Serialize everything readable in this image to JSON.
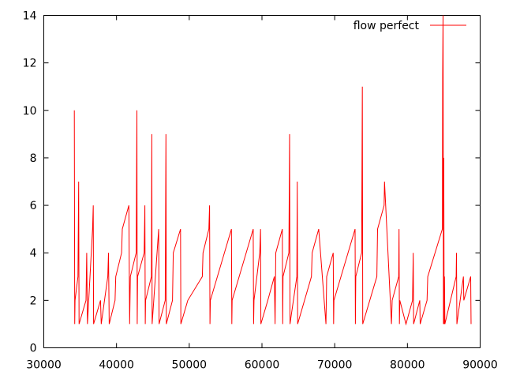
{
  "chart_data": {
    "type": "line",
    "title": "",
    "xlabel": "",
    "ylabel": "",
    "xlim": [
      30000,
      90000
    ],
    "ylim": [
      0,
      14
    ],
    "xticks": [
      "30000",
      "40000",
      "50000",
      "60000",
      "70000",
      "80000",
      "90000"
    ],
    "yticks": [
      "0",
      "2",
      "4",
      "6",
      "8",
      "10",
      "12",
      "14"
    ],
    "grid": false,
    "legend_position": "top-right",
    "series": [
      {
        "name": "flow perfect",
        "color": "#ff0000",
        "points": [
          [
            34200,
            10
          ],
          [
            34250,
            1
          ],
          [
            34300,
            2
          ],
          [
            34700,
            3
          ],
          [
            34800,
            7
          ],
          [
            34850,
            1
          ],
          [
            35800,
            2
          ],
          [
            35900,
            4
          ],
          [
            36000,
            1
          ],
          [
            36700,
            5
          ],
          [
            36800,
            6
          ],
          [
            36850,
            1
          ],
          [
            37800,
            2
          ],
          [
            37900,
            1
          ],
          [
            38800,
            3
          ],
          [
            38900,
            4
          ],
          [
            39000,
            1
          ],
          [
            39800,
            2
          ],
          [
            39900,
            3
          ],
          [
            40700,
            4
          ],
          [
            40800,
            5
          ],
          [
            41700,
            6
          ],
          [
            41800,
            1
          ],
          [
            41900,
            3
          ],
          [
            42700,
            4
          ],
          [
            42800,
            10
          ],
          [
            42850,
            1
          ],
          [
            42900,
            3
          ],
          [
            43800,
            4
          ],
          [
            43900,
            6
          ],
          [
            43950,
            1
          ],
          [
            44000,
            2
          ],
          [
            44800,
            3
          ],
          [
            44850,
            9
          ],
          [
            44900,
            1
          ],
          [
            45800,
            5
          ],
          [
            45850,
            1
          ],
          [
            46700,
            2
          ],
          [
            46800,
            9
          ],
          [
            46850,
            1
          ],
          [
            47700,
            2
          ],
          [
            47800,
            4
          ],
          [
            48800,
            5
          ],
          [
            48850,
            1
          ],
          [
            49800,
            2
          ],
          [
            51800,
            3
          ],
          [
            51900,
            4
          ],
          [
            52700,
            5
          ],
          [
            52800,
            6
          ],
          [
            52850,
            1
          ],
          [
            52900,
            2
          ],
          [
            55800,
            5
          ],
          [
            55850,
            1
          ],
          [
            55900,
            2
          ],
          [
            58800,
            5
          ],
          [
            58850,
            1
          ],
          [
            58900,
            2
          ],
          [
            59700,
            4
          ],
          [
            59800,
            5
          ],
          [
            59850,
            1
          ],
          [
            60800,
            2
          ],
          [
            61700,
            3
          ],
          [
            61800,
            1
          ],
          [
            61900,
            4
          ],
          [
            62800,
            5
          ],
          [
            62850,
            1
          ],
          [
            62900,
            3
          ],
          [
            63700,
            4
          ],
          [
            63800,
            9
          ],
          [
            63850,
            1
          ],
          [
            64800,
            3
          ],
          [
            64850,
            7
          ],
          [
            64900,
            1
          ],
          [
            66800,
            3
          ],
          [
            66900,
            4
          ],
          [
            67800,
            5
          ],
          [
            68800,
            1
          ],
          [
            68900,
            3
          ],
          [
            69800,
            4
          ],
          [
            69850,
            1
          ],
          [
            69900,
            2
          ],
          [
            72800,
            5
          ],
          [
            72850,
            1
          ],
          [
            72900,
            3
          ],
          [
            73700,
            4
          ],
          [
            73800,
            11
          ],
          [
            73850,
            1
          ],
          [
            75800,
            3
          ],
          [
            75900,
            5
          ],
          [
            76800,
            6
          ],
          [
            76850,
            7
          ],
          [
            77800,
            1
          ],
          [
            77900,
            2
          ],
          [
            78800,
            3
          ],
          [
            78850,
            5
          ],
          [
            78900,
            1
          ],
          [
            78950,
            2
          ],
          [
            79800,
            1
          ],
          [
            80700,
            2
          ],
          [
            80800,
            4
          ],
          [
            80850,
            1
          ],
          [
            81700,
            2
          ],
          [
            81750,
            1
          ],
          [
            82700,
            2
          ],
          [
            82800,
            3
          ],
          [
            84800,
            5
          ],
          [
            84850,
            11.5
          ],
          [
            84900,
            14
          ],
          [
            84950,
            1
          ],
          [
            85000,
            8
          ],
          [
            85050,
            1
          ],
          [
            85100,
            3
          ],
          [
            85150,
            1
          ],
          [
            86700,
            3
          ],
          [
            86750,
            4
          ],
          [
            86800,
            1
          ],
          [
            87700,
            3
          ],
          [
            87750,
            2
          ],
          [
            88700,
            3
          ],
          [
            88750,
            1
          ]
        ]
      }
    ]
  }
}
